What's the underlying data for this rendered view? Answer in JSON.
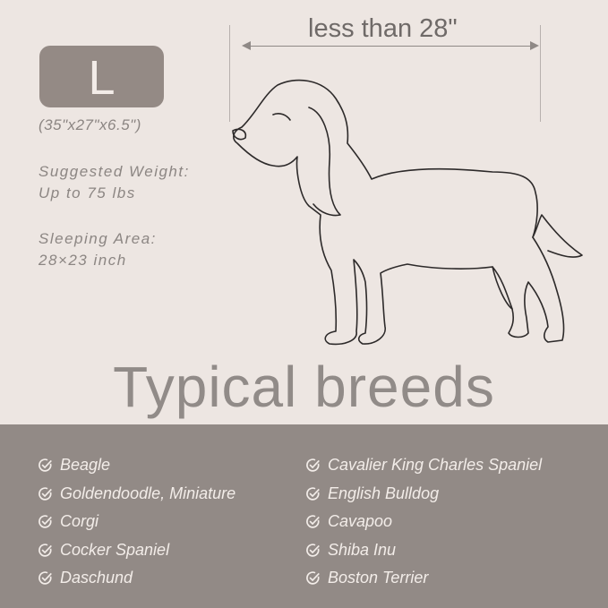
{
  "size": {
    "label": "L",
    "dimensions": "(35\"x27\"x6.5\")"
  },
  "weight": {
    "label": "Suggested Weight:",
    "value": "Up to 75 lbs"
  },
  "sleeping_area": {
    "label": "Sleeping Area:",
    "value": "28×23 inch"
  },
  "measurement": {
    "label": "less than 28\""
  },
  "title": "Typical breeds",
  "breeds_left": [
    "Beagle",
    "Goldendoodle, Miniature",
    "Corgi",
    "Cocker Spaniel",
    "Daschund"
  ],
  "breeds_right": [
    "Cavalier King Charles Spaniel",
    "English Bulldog",
    "Cavapoo",
    "Shiba Inu",
    "Boston Terrier"
  ],
  "colors": {
    "background": "#ede6e2",
    "band": "#928a86",
    "badge": "#948a85",
    "text": "#8c8683"
  },
  "icons": {
    "list_bullet": "check-circle-icon",
    "illustration": "beagle-dog-outline"
  }
}
